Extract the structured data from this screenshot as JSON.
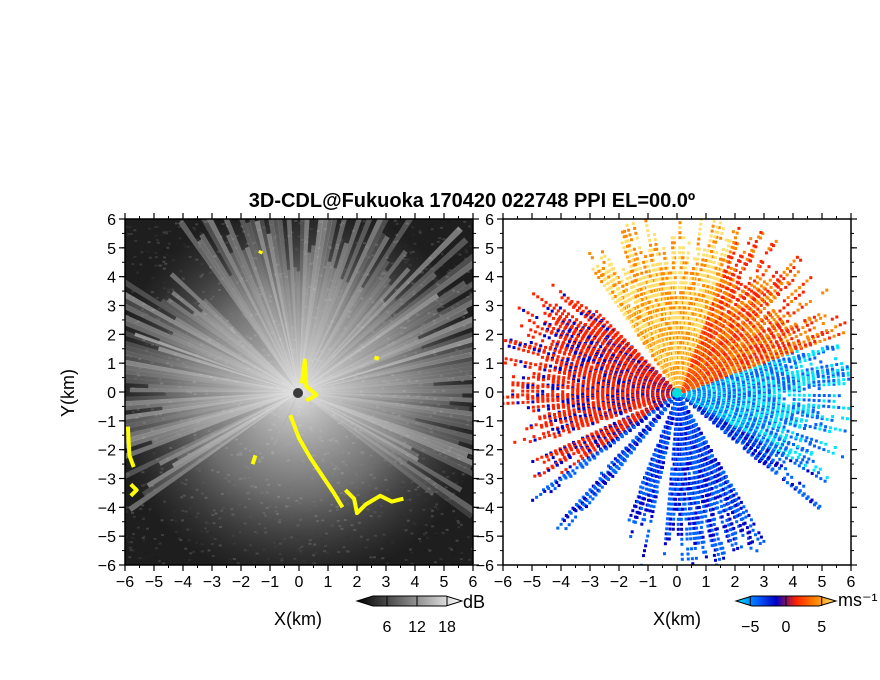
{
  "title": "3D-CDL@Fukuoka 170420 022748 PPI EL=00.0º",
  "chart_data": [
    {
      "type": "heatmap",
      "panel": "left",
      "quantity": "SNR",
      "xlabel": "X(km)",
      "ylabel": "Y(km)",
      "xlim": [
        -6,
        6
      ],
      "ylim": [
        -6,
        6
      ],
      "x_ticks": [
        "−6",
        "−5",
        "−4",
        "−3",
        "−2",
        "−1",
        "0",
        "1",
        "2",
        "3",
        "4",
        "5",
        "6"
      ],
      "y_ticks": [
        "6",
        "5",
        "4",
        "3",
        "2",
        "1",
        "0",
        "−1",
        "−2",
        "−3",
        "−4",
        "−5",
        "−6"
      ],
      "colorbar": {
        "unit": "dB",
        "ticks": [
          "6",
          "12",
          "18"
        ],
        "range": [
          0,
          21
        ],
        "colors": [
          "#000000",
          "#ffffff"
        ]
      },
      "flag_color": "#ffff00",
      "background_color": "#1e1e1e"
    },
    {
      "type": "heatmap",
      "panel": "right",
      "quantity": "Doppler velocity",
      "xlabel": "X(km)",
      "xlim": [
        -6,
        6
      ],
      "ylim": [
        -6,
        6
      ],
      "x_ticks": [
        "−6",
        "−5",
        "−4",
        "−3",
        "−2",
        "−1",
        "0",
        "1",
        "2",
        "3",
        "4",
        "5",
        "6"
      ],
      "y_ticks": [
        "6",
        "5",
        "4",
        "3",
        "2",
        "1",
        "0",
        "−1",
        "−2",
        "−3",
        "−4",
        "−5",
        "−6"
      ],
      "colorbar": {
        "unit": "ms⁻¹",
        "ticks": [
          "−5",
          "0",
          "5"
        ],
        "range": [
          -7,
          7
        ],
        "colors": [
          "#00e5ff",
          "#0066ff",
          "#0000c8",
          "#ff2200",
          "#ff8800",
          "#ffe070"
        ]
      },
      "background_color": "#ffffff"
    }
  ]
}
